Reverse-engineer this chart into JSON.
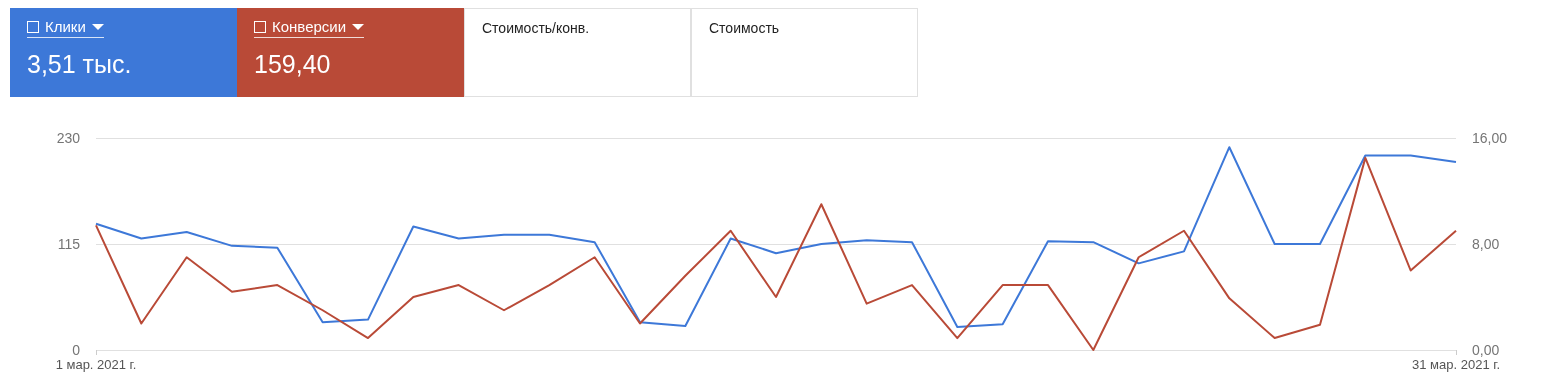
{
  "chart_data": {
    "type": "line",
    "categories": [
      "1 мар. 2021 г.",
      null,
      null,
      null,
      null,
      null,
      null,
      null,
      null,
      null,
      null,
      null,
      null,
      null,
      null,
      null,
      null,
      null,
      null,
      null,
      null,
      null,
      null,
      null,
      null,
      null,
      null,
      null,
      null,
      null,
      "31 мар. 2021 г."
    ],
    "series": [
      {
        "name": "Клики",
        "color": "#3d78d8",
        "values": [
          137,
          121,
          128,
          113,
          111,
          30,
          33,
          134,
          121,
          125,
          125,
          117,
          30,
          26,
          121,
          105,
          115,
          119,
          117,
          25,
          28,
          118,
          117,
          94,
          107,
          220,
          115,
          115,
          211,
          211,
          204
        ]
      },
      {
        "name": "Конверсии",
        "color": "#b94a37",
        "axis": "y2",
        "values": [
          9.4,
          2.0,
          7.0,
          4.4,
          4.9,
          3.0,
          0.9,
          4.0,
          4.9,
          3.0,
          4.9,
          7.0,
          2.0,
          5.6,
          9.0,
          4.0,
          11.0,
          3.5,
          4.9,
          0.9,
          4.9,
          4.9,
          0,
          7.0,
          9.0,
          3.9,
          0.9,
          1.9,
          14.5,
          6.0,
          9.0
        ]
      }
    ],
    "ylim": [
      0,
      230
    ],
    "yticks": [
      0,
      115,
      230
    ],
    "y2lim": [
      0,
      16
    ],
    "y2ticks": [
      {
        "value": 0,
        "label": "0,00"
      },
      {
        "value": 8,
        "label": "8,00"
      },
      {
        "value": 16,
        "label": "16,00"
      }
    ],
    "annotations": [
      "3,51 тыс.",
      "159,40",
      "Стоимость/конв.",
      "Стоимость"
    ],
    "grid": "y",
    "legend": "top left",
    "marker": "none",
    "line_style": "solid"
  }
}
